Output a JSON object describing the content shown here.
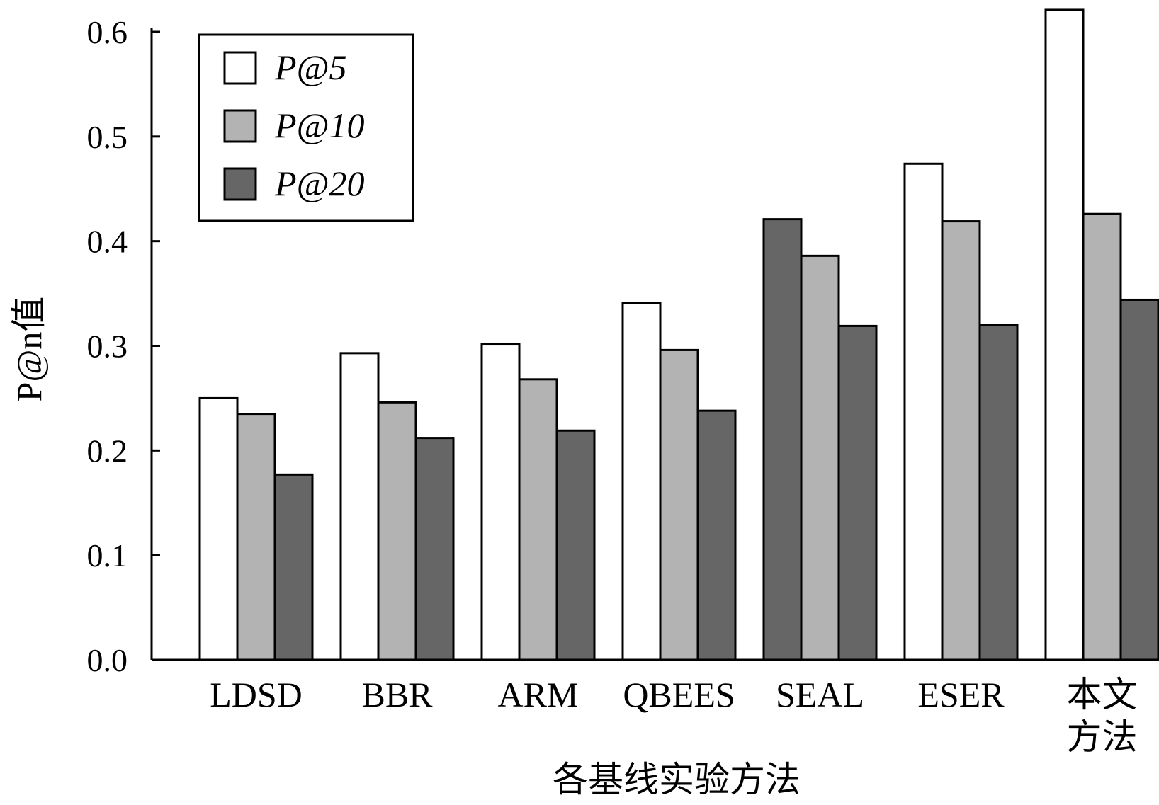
{
  "chart_data": {
    "type": "bar",
    "title": "",
    "xlabel": "各基线实验方法",
    "ylabel": "P@n值",
    "ylim": [
      0,
      0.6
    ],
    "yticks": [
      "0.0",
      "0.1",
      "0.2",
      "0.3",
      "0.4",
      "0.5",
      "0.6"
    ],
    "legend_placement": "top-left",
    "grid": false,
    "categories": [
      {
        "lines": [
          "LDSD"
        ]
      },
      {
        "lines": [
          "BBR"
        ]
      },
      {
        "lines": [
          "ARM"
        ]
      },
      {
        "lines": [
          "QBEES"
        ]
      },
      {
        "lines": [
          "SEAL"
        ]
      },
      {
        "lines": [
          "ESER"
        ]
      },
      {
        "lines": [
          "本文",
          "方法"
        ]
      }
    ],
    "series": [
      {
        "name": "P@5",
        "color": "#ffffff",
        "values": [
          0.25,
          0.293,
          0.302,
          0.341,
          0.421,
          0.474,
          0.621
        ]
      },
      {
        "name": "P@10",
        "color": "#b3b3b3",
        "values": [
          0.235,
          0.246,
          0.268,
          0.296,
          0.386,
          0.419,
          0.426
        ]
      },
      {
        "name": "P@20",
        "color": "#666666",
        "values": [
          0.177,
          0.212,
          0.219,
          0.238,
          0.319,
          0.32,
          0.344
        ]
      }
    ],
    "series_fill_overrides": [
      {
        "category_index": 4,
        "series_index": 0,
        "color": "#666666"
      }
    ]
  }
}
